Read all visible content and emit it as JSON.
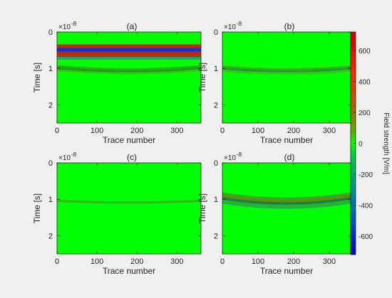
{
  "figure": {
    "background": "#f0f0f0",
    "field_color": "#00ff00"
  },
  "chart_data": [
    {
      "type": "heatmap",
      "title": "(a)",
      "xlabel": "Trace number",
      "ylabel": "Time [s]",
      "exponent_label": "×10",
      "exponent_power": "-8",
      "xlim": [
        0,
        360
      ],
      "ylim": [
        0,
        2.5
      ],
      "y_reversed": true,
      "xticks": [
        0,
        100,
        200,
        300
      ],
      "yticks": [
        0,
        1,
        2
      ],
      "bands": [
        {
          "y_start": 0.34,
          "y_end": 0.44,
          "color": "#cc2200",
          "kind": "flat"
        },
        {
          "y_start": 0.44,
          "y_end": 0.54,
          "color": "#0033ee",
          "kind": "flat"
        },
        {
          "y_start": 0.54,
          "y_end": 0.64,
          "color": "#d02000",
          "kind": "flat"
        },
        {
          "y_start": 0.64,
          "y_end": 0.69,
          "color": "#7a5000",
          "kind": "flat"
        },
        {
          "y_start": 0.69,
          "y_end": 0.76,
          "color": "#2a9a8a",
          "kind": "flat"
        },
        {
          "y_start": 1.0,
          "y_end": 1.05,
          "color": "#3aa000",
          "kind": "arc",
          "apex_trace": 180,
          "curvature": 0.09
        },
        {
          "y_start": 1.05,
          "y_end": 1.11,
          "color": "#1d8a3a",
          "kind": "arc",
          "apex_trace": 180,
          "curvature": 0.09
        },
        {
          "y_start": 1.11,
          "y_end": 1.16,
          "color": "#49b800",
          "kind": "arc",
          "apex_trace": 180,
          "curvature": 0.09
        }
      ]
    },
    {
      "type": "heatmap",
      "title": "(b)",
      "xlabel": "Trace number",
      "ylabel": "Time [s]",
      "exponent_label": "×10",
      "exponent_power": "-8",
      "xlim": [
        0,
        360
      ],
      "ylim": [
        0,
        2.5
      ],
      "y_reversed": true,
      "xticks": [
        0,
        100,
        200,
        300
      ],
      "yticks": [
        0,
        1,
        2
      ],
      "bands": [
        {
          "y_start": 1.0,
          "y_end": 1.05,
          "color": "#4aa000",
          "kind": "arc",
          "apex_trace": 180,
          "curvature": 0.08
        },
        {
          "y_start": 1.05,
          "y_end": 1.11,
          "color": "#1e8a4a",
          "kind": "arc",
          "apex_trace": 180,
          "curvature": 0.08
        },
        {
          "y_start": 1.11,
          "y_end": 1.17,
          "color": "#44bb10",
          "kind": "arc",
          "apex_trace": 180,
          "curvature": 0.08
        }
      ]
    },
    {
      "type": "heatmap",
      "title": "(c)",
      "xlabel": "Trace number",
      "ylabel": "Time [s]",
      "exponent_label": "×10",
      "exponent_power": "-8",
      "xlim": [
        0,
        360
      ],
      "ylim": [
        0,
        2.5
      ],
      "y_reversed": true,
      "xticks": [
        0,
        100,
        200,
        300
      ],
      "yticks": [
        0,
        1,
        2
      ],
      "bands": [
        {
          "y_start": 1.06,
          "y_end": 1.12,
          "color": "#3fa828",
          "kind": "arc",
          "apex_trace": 180,
          "curvature": 0.05
        }
      ]
    },
    {
      "type": "heatmap",
      "title": "(d)",
      "xlabel": "Trace number",
      "ylabel": "Time [s]",
      "exponent_label": "×10",
      "exponent_power": "-8",
      "xlim": [
        0,
        360
      ],
      "ylim": [
        0,
        2.5
      ],
      "y_reversed": true,
      "xticks": [
        0,
        100,
        200,
        300
      ],
      "yticks": [
        0,
        1,
        2
      ],
      "bands": [
        {
          "y_start": 0.95,
          "y_end": 1.01,
          "color": "#3a9a30",
          "kind": "arc",
          "apex_trace": 180,
          "curvature": 0.14
        },
        {
          "y_start": 1.01,
          "y_end": 1.08,
          "color": "#7a7a00",
          "kind": "arc",
          "apex_trace": 180,
          "curvature": 0.14
        },
        {
          "y_start": 1.08,
          "y_end": 1.15,
          "color": "#1a6a5a",
          "kind": "arc",
          "apex_trace": 180,
          "curvature": 0.14
        },
        {
          "y_start": 1.15,
          "y_end": 1.21,
          "color": "#3aa028",
          "kind": "arc",
          "apex_trace": 180,
          "curvature": 0.14
        },
        {
          "y_start": 1.21,
          "y_end": 1.26,
          "color": "#28a060",
          "kind": "arc",
          "apex_trace": 180,
          "curvature": 0.14
        }
      ]
    }
  ],
  "colorbar": {
    "label": "Field strength [V/m]",
    "range": [
      -720,
      720
    ],
    "ticks": [
      "600",
      "400",
      "200",
      "0",
      "-200",
      "-400",
      "-600"
    ],
    "tick_values": [
      600,
      400,
      200,
      0,
      -200,
      -400,
      -600
    ],
    "colormap": [
      {
        "value": 720,
        "color": "#cc0000"
      },
      {
        "value": 450,
        "color": "#ff2a00"
      },
      {
        "value": 240,
        "color": "#b06000"
      },
      {
        "value": 80,
        "color": "#55b000"
      },
      {
        "value": 0,
        "color": "#00ff00"
      },
      {
        "value": -80,
        "color": "#00cc44"
      },
      {
        "value": -240,
        "color": "#00a080"
      },
      {
        "value": -450,
        "color": "#0066bb"
      },
      {
        "value": -720,
        "color": "#0000cc"
      }
    ]
  }
}
